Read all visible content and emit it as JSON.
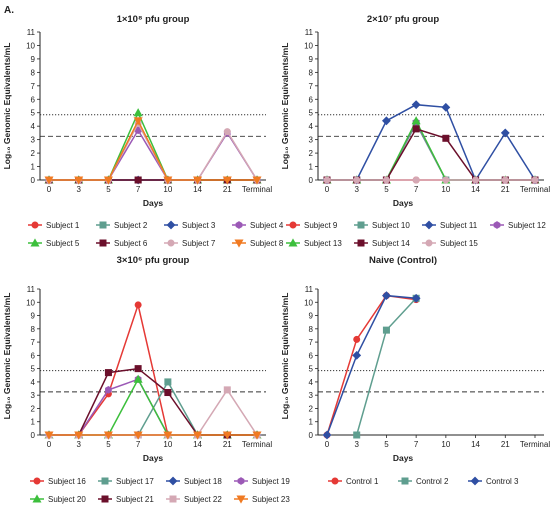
{
  "panel_label": "A.",
  "colors": {
    "red": "#e53935",
    "teal": "#5f9e8f",
    "blue": "#2f4fa3",
    "purple": "#9b59b6",
    "green": "#3cbf3c",
    "maroon": "#6b0f2b",
    "pink": "#d4a8b4",
    "orange": "#f07a22"
  },
  "chart_data": [
    {
      "type": "line",
      "title": "1×10⁸ pfu group",
      "xlabel": "Days",
      "ylabel": "Log₁₀ Genomic Equivalents/mL",
      "categories": [
        "0",
        "3",
        "5",
        "7",
        "10",
        "14",
        "21",
        "Terminal"
      ],
      "ylim": [
        0,
        11
      ],
      "yticks": [
        0,
        1,
        2,
        3,
        4,
        5,
        6,
        7,
        8,
        9,
        10,
        11
      ],
      "reference_lines": [
        {
          "y": 4.85,
          "style": "dotted"
        },
        {
          "y": 3.25,
          "style": "dashed"
        }
      ],
      "legend_columns": 4,
      "series": [
        {
          "name": "Subject 1",
          "color": "#e53935",
          "marker": "circle",
          "values": [
            0,
            0,
            0,
            0,
            0,
            0,
            0,
            0
          ]
        },
        {
          "name": "Subject 2",
          "color": "#5f9e8f",
          "marker": "square",
          "values": [
            0,
            0,
            0,
            0,
            0,
            0,
            0,
            0
          ]
        },
        {
          "name": "Subject 3",
          "color": "#2f4fa3",
          "marker": "diamond",
          "values": [
            0,
            0,
            0,
            0,
            0,
            0,
            0,
            0
          ]
        },
        {
          "name": "Subject 4",
          "color": "#9b59b6",
          "marker": "hexagon",
          "values": [
            0,
            0,
            0,
            3.7,
            0,
            0,
            3.5,
            0
          ]
        },
        {
          "name": "Subject 5",
          "color": "#3cbf3c",
          "marker": "triangle",
          "values": [
            0,
            0,
            0,
            5.0,
            0,
            0,
            0,
            0
          ]
        },
        {
          "name": "Subject 6",
          "color": "#6b0f2b",
          "marker": "square",
          "values": [
            0,
            0,
            0,
            0,
            0,
            0,
            0,
            0
          ]
        },
        {
          "name": "Subject 7",
          "color": "#d4a8b4",
          "marker": "circle",
          "values": [
            0,
            0,
            0,
            4.2,
            0,
            0,
            3.6,
            0
          ]
        },
        {
          "name": "Subject 8",
          "color": "#f07a22",
          "marker": "triangle-down",
          "values": [
            0,
            0,
            0,
            4.4,
            0,
            0,
            0,
            0
          ]
        }
      ]
    },
    {
      "type": "line",
      "title": "2×10⁷ pfu group",
      "xlabel": "Days",
      "ylabel": "Log₁₀ Genomic Equivalents/mL",
      "categories": [
        "0",
        "3",
        "5",
        "7",
        "10",
        "14",
        "21",
        "Terminal"
      ],
      "ylim": [
        0,
        11
      ],
      "yticks": [
        0,
        1,
        2,
        3,
        4,
        5,
        6,
        7,
        8,
        9,
        10,
        11
      ],
      "reference_lines": [
        {
          "y": 4.85,
          "style": "dotted"
        },
        {
          "y": 3.25,
          "style": "dashed"
        }
      ],
      "legend_columns": 4,
      "series": [
        {
          "name": "Subject 9",
          "color": "#e53935",
          "marker": "circle",
          "values": [
            0,
            0,
            0,
            0,
            0,
            0,
            0,
            0
          ]
        },
        {
          "name": "Subject 10",
          "color": "#5f9e8f",
          "marker": "square",
          "values": [
            0,
            0,
            0,
            4.2,
            0,
            0,
            0,
            0
          ]
        },
        {
          "name": "Subject 11",
          "color": "#2f4fa3",
          "marker": "diamond",
          "values": [
            0,
            0,
            4.4,
            5.6,
            5.4,
            0,
            3.5,
            0
          ]
        },
        {
          "name": "Subject 12",
          "color": "#9b59b6",
          "marker": "hexagon",
          "values": [
            0,
            0,
            0,
            4.3,
            0,
            0,
            0,
            0
          ]
        },
        {
          "name": "Subject 13",
          "color": "#3cbf3c",
          "marker": "triangle",
          "values": [
            0,
            0,
            0,
            4.4,
            0,
            0,
            0,
            0
          ]
        },
        {
          "name": "Subject 14",
          "color": "#6b0f2b",
          "marker": "square",
          "values": [
            0,
            0,
            0,
            3.8,
            3.1,
            0,
            0,
            0
          ]
        },
        {
          "name": "Subject 15",
          "color": "#d4a8b4",
          "marker": "circle",
          "values": [
            0,
            0,
            0,
            0,
            0,
            0,
            0,
            0
          ]
        }
      ]
    },
    {
      "type": "line",
      "title": "3×10⁶ pfu group",
      "xlabel": "Days",
      "ylabel": "Log₁₀ Genomic Equivalents/mL",
      "categories": [
        "0",
        "3",
        "5",
        "7",
        "10",
        "14",
        "21",
        "Terminal"
      ],
      "ylim": [
        0,
        11
      ],
      "yticks": [
        0,
        1,
        2,
        3,
        4,
        5,
        6,
        7,
        8,
        9,
        10,
        11
      ],
      "reference_lines": [
        {
          "y": 4.85,
          "style": "dotted"
        },
        {
          "y": 3.25,
          "style": "dashed"
        }
      ],
      "legend_columns": 4,
      "series": [
        {
          "name": "Subject 16",
          "color": "#e53935",
          "marker": "circle",
          "values": [
            0,
            0,
            3.1,
            9.8,
            0,
            0,
            0,
            0
          ]
        },
        {
          "name": "Subject 17",
          "color": "#5f9e8f",
          "marker": "square",
          "values": [
            0,
            0,
            0,
            0,
            4.0,
            0,
            0,
            0
          ]
        },
        {
          "name": "Subject 18",
          "color": "#2f4fa3",
          "marker": "diamond",
          "values": [
            0,
            0,
            0,
            0,
            0,
            0,
            0,
            0
          ]
        },
        {
          "name": "Subject 19",
          "color": "#9b59b6",
          "marker": "hexagon",
          "values": [
            0,
            0,
            3.4,
            4.2,
            0,
            0,
            0,
            0
          ]
        },
        {
          "name": "Subject 20",
          "color": "#3cbf3c",
          "marker": "triangle",
          "values": [
            0,
            0,
            0,
            4.2,
            0,
            0,
            0,
            0
          ]
        },
        {
          "name": "Subject 21",
          "color": "#6b0f2b",
          "marker": "square",
          "values": [
            0,
            0,
            4.7,
            5.0,
            3.2,
            0,
            0,
            0
          ]
        },
        {
          "name": "Subject 22",
          "color": "#d4a8b4",
          "marker": "square",
          "values": [
            0,
            0,
            0,
            0,
            0,
            0,
            3.4,
            0
          ]
        },
        {
          "name": "Subject 23",
          "color": "#f07a22",
          "marker": "triangle-down",
          "values": [
            0,
            0,
            0,
            0,
            0,
            0,
            0,
            0
          ]
        }
      ]
    },
    {
      "type": "line",
      "title": "Naive (Control)",
      "xlabel": "Days",
      "ylabel": "Log₁₀ Genomic Equivalents/mL",
      "categories": [
        "0",
        "3",
        "5",
        "7",
        "10",
        "14",
        "21",
        "Terminal"
      ],
      "ylim": [
        0,
        11
      ],
      "yticks": [
        0,
        1,
        2,
        3,
        4,
        5,
        6,
        7,
        8,
        9,
        10,
        11
      ],
      "reference_lines": [
        {
          "y": 4.85,
          "style": "dotted"
        },
        {
          "y": 3.25,
          "style": "dashed"
        }
      ],
      "legend_columns": 3,
      "series": [
        {
          "name": "Control 1",
          "color": "#e53935",
          "marker": "circle",
          "values": [
            0,
            7.2,
            10.5,
            10.2,
            null,
            null,
            null,
            null
          ]
        },
        {
          "name": "Control 2",
          "color": "#5f9e8f",
          "marker": "square",
          "values": [
            null,
            0,
            7.9,
            10.3,
            null,
            null,
            null,
            null
          ]
        },
        {
          "name": "Control 3",
          "color": "#2f4fa3",
          "marker": "diamond",
          "values": [
            0,
            6.0,
            10.5,
            10.3,
            null,
            null,
            null,
            null
          ]
        }
      ]
    }
  ]
}
